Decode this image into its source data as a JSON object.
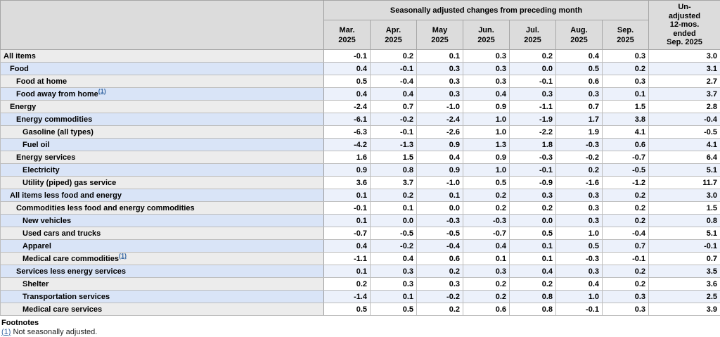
{
  "table": {
    "header": {
      "group_label": "Seasonally adjusted changes from preceding month",
      "months": [
        "Mar.\n2025",
        "Apr.\n2025",
        "May\n2025",
        "Jun.\n2025",
        "Jul.\n2025",
        "Aug.\n2025",
        "Sep.\n2025"
      ],
      "unadjusted_label": "Un-\nadjusted\n12-mos.\nended\nSep. 2025"
    },
    "rows": [
      {
        "label": "All items",
        "indent": 0,
        "footnote": null,
        "values": [
          "-0.1",
          "0.2",
          "0.1",
          "0.3",
          "0.2",
          "0.4",
          "0.3"
        ],
        "unadjusted": "3.0"
      },
      {
        "label": "Food",
        "indent": 1,
        "footnote": null,
        "values": [
          "0.4",
          "-0.1",
          "0.3",
          "0.3",
          "0.0",
          "0.5",
          "0.2"
        ],
        "unadjusted": "3.1"
      },
      {
        "label": "Food at home",
        "indent": 2,
        "footnote": null,
        "values": [
          "0.5",
          "-0.4",
          "0.3",
          "0.3",
          "-0.1",
          "0.6",
          "0.3"
        ],
        "unadjusted": "2.7"
      },
      {
        "label": "Food away from home",
        "indent": 2,
        "footnote": "(1)",
        "values": [
          "0.4",
          "0.4",
          "0.3",
          "0.4",
          "0.3",
          "0.3",
          "0.1"
        ],
        "unadjusted": "3.7"
      },
      {
        "label": "Energy",
        "indent": 1,
        "footnote": null,
        "values": [
          "-2.4",
          "0.7",
          "-1.0",
          "0.9",
          "-1.1",
          "0.7",
          "1.5"
        ],
        "unadjusted": "2.8"
      },
      {
        "label": "Energy commodities",
        "indent": 2,
        "footnote": null,
        "values": [
          "-6.1",
          "-0.2",
          "-2.4",
          "1.0",
          "-1.9",
          "1.7",
          "3.8"
        ],
        "unadjusted": "-0.4"
      },
      {
        "label": "Gasoline (all types)",
        "indent": 3,
        "footnote": null,
        "values": [
          "-6.3",
          "-0.1",
          "-2.6",
          "1.0",
          "-2.2",
          "1.9",
          "4.1"
        ],
        "unadjusted": "-0.5"
      },
      {
        "label": "Fuel oil",
        "indent": 3,
        "footnote": null,
        "values": [
          "-4.2",
          "-1.3",
          "0.9",
          "1.3",
          "1.8",
          "-0.3",
          "0.6"
        ],
        "unadjusted": "4.1"
      },
      {
        "label": "Energy services",
        "indent": 2,
        "footnote": null,
        "values": [
          "1.6",
          "1.5",
          "0.4",
          "0.9",
          "-0.3",
          "-0.2",
          "-0.7"
        ],
        "unadjusted": "6.4"
      },
      {
        "label": "Electricity",
        "indent": 3,
        "footnote": null,
        "values": [
          "0.9",
          "0.8",
          "0.9",
          "1.0",
          "-0.1",
          "0.2",
          "-0.5"
        ],
        "unadjusted": "5.1"
      },
      {
        "label": "Utility (piped) gas service",
        "indent": 3,
        "footnote": null,
        "values": [
          "3.6",
          "3.7",
          "-1.0",
          "0.5",
          "-0.9",
          "-1.6",
          "-1.2"
        ],
        "unadjusted": "11.7"
      },
      {
        "label": "All items less food and energy",
        "indent": 1,
        "footnote": null,
        "values": [
          "0.1",
          "0.2",
          "0.1",
          "0.2",
          "0.3",
          "0.3",
          "0.2"
        ],
        "unadjusted": "3.0"
      },
      {
        "label": "Commodities less food and energy commodities",
        "indent": 2,
        "footnote": null,
        "values": [
          "-0.1",
          "0.1",
          "0.0",
          "0.2",
          "0.2",
          "0.3",
          "0.2"
        ],
        "unadjusted": "1.5"
      },
      {
        "label": "New vehicles",
        "indent": 3,
        "footnote": null,
        "values": [
          "0.1",
          "0.0",
          "-0.3",
          "-0.3",
          "0.0",
          "0.3",
          "0.2"
        ],
        "unadjusted": "0.8"
      },
      {
        "label": "Used cars and trucks",
        "indent": 3,
        "footnote": null,
        "values": [
          "-0.7",
          "-0.5",
          "-0.5",
          "-0.7",
          "0.5",
          "1.0",
          "-0.4"
        ],
        "unadjusted": "5.1"
      },
      {
        "label": "Apparel",
        "indent": 3,
        "footnote": null,
        "values": [
          "0.4",
          "-0.2",
          "-0.4",
          "0.4",
          "0.1",
          "0.5",
          "0.7"
        ],
        "unadjusted": "-0.1"
      },
      {
        "label": "Medical care commodities",
        "indent": 3,
        "footnote": "(1)",
        "values": [
          "-1.1",
          "0.4",
          "0.6",
          "0.1",
          "0.1",
          "-0.3",
          "-0.1"
        ],
        "unadjusted": "0.7"
      },
      {
        "label": "Services less energy services",
        "indent": 2,
        "footnote": null,
        "values": [
          "0.1",
          "0.3",
          "0.2",
          "0.3",
          "0.4",
          "0.3",
          "0.2"
        ],
        "unadjusted": "3.5"
      },
      {
        "label": "Shelter",
        "indent": 3,
        "footnote": null,
        "values": [
          "0.2",
          "0.3",
          "0.3",
          "0.2",
          "0.2",
          "0.4",
          "0.2"
        ],
        "unadjusted": "3.6"
      },
      {
        "label": "Transportation services",
        "indent": 3,
        "footnote": null,
        "values": [
          "-1.4",
          "0.1",
          "-0.2",
          "0.2",
          "0.8",
          "1.0",
          "0.3"
        ],
        "unadjusted": "2.5"
      },
      {
        "label": "Medical care services",
        "indent": 3,
        "footnote": null,
        "values": [
          "0.5",
          "0.5",
          "0.2",
          "0.6",
          "0.8",
          "-0.1",
          "0.3"
        ],
        "unadjusted": "3.9"
      }
    ]
  },
  "footnotes": {
    "title": "Footnotes",
    "items": [
      {
        "marker": "(1)",
        "text": "Not seasonally adjusted."
      }
    ]
  },
  "colors": {
    "header_bg": "#dcdcdc",
    "stub_gray": "#ececec",
    "stub_blue": "#d9e4f7",
    "data_blue": "#ecf1fb",
    "link_blue": "#3a6aa5"
  }
}
